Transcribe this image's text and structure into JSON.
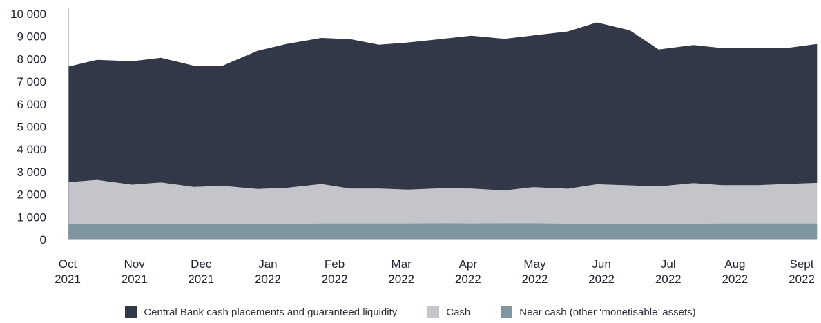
{
  "chart_data": {
    "type": "area",
    "stacked": true,
    "title": "",
    "xlabel": "",
    "ylabel": "",
    "ylim": [
      0,
      10000
    ],
    "yticks": [
      "0",
      "1 000",
      "2 000",
      "3 000",
      "4 000",
      "5 000",
      "6 000",
      "7 000",
      "8 000",
      "9 000",
      "10 000"
    ],
    "xticks": [
      {
        "month": "Oct",
        "year": "2021"
      },
      {
        "month": "Nov",
        "year": "2021"
      },
      {
        "month": "Dec",
        "year": "2021"
      },
      {
        "month": "Jan",
        "year": "2022"
      },
      {
        "month": "Feb",
        "year": "2022"
      },
      {
        "month": "Mar",
        "year": "2022"
      },
      {
        "month": "Apr",
        "year": "2022"
      },
      {
        "month": "May",
        "year": "2022"
      },
      {
        "month": "Jun",
        "year": "2022"
      },
      {
        "month": "Jul",
        "year": "2022"
      },
      {
        "month": "Aug",
        "year": "2022"
      },
      {
        "month": "Sept",
        "year": "2022"
      }
    ],
    "grid": false,
    "legend_position": "bottom",
    "x": [
      "2021-10-01",
      "2021-10-15",
      "2021-11-01",
      "2021-11-15",
      "2021-12-01",
      "2021-12-15",
      "2022-01-01",
      "2022-01-15",
      "2022-02-01",
      "2022-02-15",
      "2022-03-01",
      "2022-03-15",
      "2022-04-01",
      "2022-04-15",
      "2022-05-01",
      "2022-05-15",
      "2022-06-01",
      "2022-06-15",
      "2022-07-01",
      "2022-07-15",
      "2022-08-01",
      "2022-08-15",
      "2022-09-01",
      "2022-09-15",
      "2022-09-30"
    ],
    "series": [
      {
        "name": "Near cash (other ‘monetisable’ assets)",
        "color": "#7d96a0",
        "values": [
          700,
          700,
          690,
          690,
          690,
          690,
          700,
          700,
          720,
          720,
          720,
          720,
          730,
          720,
          730,
          730,
          710,
          710,
          710,
          710,
          710,
          720,
          720,
          720,
          720
        ]
      },
      {
        "name": "Cash",
        "color": "#c4c5cb",
        "values": [
          1850,
          1950,
          1750,
          1850,
          1650,
          1700,
          1550,
          1600,
          1750,
          1550,
          1550,
          1500,
          1550,
          1550,
          1450,
          1600,
          1550,
          1750,
          1700,
          1650,
          1800,
          1700,
          1700,
          1750,
          1800
        ]
      },
      {
        "name": "Central Bank cash placements and guaranteed liquidity",
        "color": "#333848",
        "values": [
          5100,
          5300,
          5450,
          5500,
          5350,
          5300,
          6100,
          6350,
          6450,
          6600,
          6350,
          6500,
          6600,
          6750,
          6700,
          6700,
          6950,
          7150,
          6850,
          6050,
          6100,
          6050,
          6050,
          6000,
          6130
        ]
      }
    ]
  }
}
